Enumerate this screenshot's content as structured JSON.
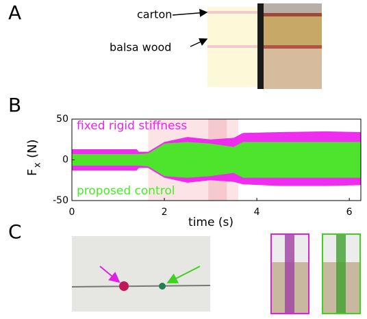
{
  "panels": [
    "A",
    "B",
    "C"
  ],
  "panel_a": {
    "labels": [
      "carton",
      "balsa wood"
    ]
  },
  "chart_data": {
    "type": "band",
    "xlabel": "time (s)",
    "ylabel": [
      "F",
      "x",
      "(N)"
    ],
    "xlim": [
      0,
      6.25
    ],
    "ylim": [
      -50,
      50
    ],
    "xticks": [
      0,
      2,
      4,
      6
    ],
    "yticks": [
      -50,
      0,
      50
    ],
    "regions": [
      {
        "x": [
          1.65,
          3.6
        ],
        "color": "#fbe3e6"
      },
      {
        "x": [
          2.95,
          3.35
        ],
        "color": "#f6c9cf"
      }
    ],
    "x": [
      0,
      1.4,
      1.45,
      1.65,
      2.0,
      2.5,
      3.0,
      3.5,
      3.7,
      4.5,
      5.5,
      6.25
    ],
    "series": [
      {
        "name": "fixed rigid stiffness",
        "color": "#ee22ee",
        "upper": [
          13,
          13,
          10,
          10,
          22,
          28,
          25,
          27,
          33,
          34,
          35,
          34
        ],
        "lower": [
          -13,
          -13,
          -10,
          -10,
          -22,
          -28,
          -25,
          -27,
          -30,
          -32,
          -32,
          -31
        ]
      },
      {
        "name": "proposed control",
        "color": "#44ee22",
        "upper": [
          7,
          7,
          7,
          8,
          20,
          22,
          20,
          16,
          22,
          22,
          22,
          22
        ],
        "lower": [
          -7,
          -7,
          -7,
          -8,
          -20,
          -22,
          -20,
          -16,
          -22,
          -22,
          -22,
          -22
        ]
      }
    ]
  }
}
